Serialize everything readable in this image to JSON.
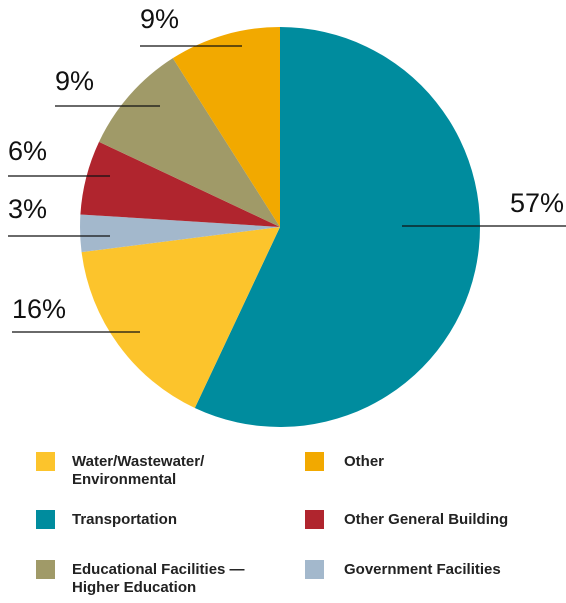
{
  "chart_data": {
    "type": "pie",
    "categories": [
      "Transportation",
      "Water/Wastewater/\nEnvironmental",
      "Government Facilities",
      "Other General Building",
      "Educational Facilities —\nHigher Education",
      "Other"
    ],
    "values": [
      57,
      16,
      3,
      6,
      9,
      9
    ],
    "value_labels": [
      "57%",
      "16%",
      "3%",
      "6%",
      "9%",
      "9%"
    ],
    "colors": [
      "#008c9e",
      "#fcc42c",
      "#a3b8cc",
      "#b0252e",
      "#a09a68",
      "#f2a900"
    ]
  }
}
